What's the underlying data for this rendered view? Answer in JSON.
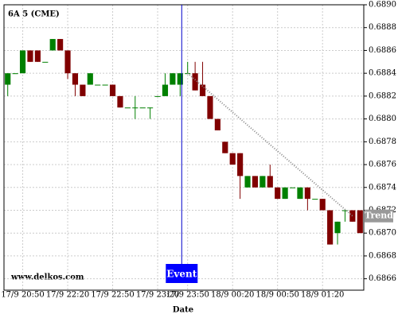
{
  "chart_data": {
    "type": "candlestick",
    "title": "6A 5 (CME)",
    "watermark": "www.delkos.com",
    "x_label": "Date",
    "categories": [
      null,
      null,
      "17/9 20:50",
      null,
      null,
      null,
      null,
      null,
      "17/9 22:20",
      null,
      null,
      null,
      null,
      null,
      "17/9 22:50",
      null,
      null,
      null,
      null,
      null,
      "17/9 23:20",
      null,
      null,
      null,
      "17/9 23:50",
      null,
      null,
      null,
      null,
      null,
      "18/9 00:20",
      null,
      null,
      null,
      null,
      null,
      "18/9 00:50",
      null,
      null,
      null,
      null,
      null,
      "18/9 01:20",
      null,
      null,
      null,
      null,
      null
    ],
    "open": [
      0.6883,
      0.6884,
      0.6884,
      0.6886,
      0.6886,
      0.6885,
      0.6886,
      0.6887,
      0.6886,
      0.6884,
      0.6883,
      0.6883,
      0.6883,
      0.6883,
      0.6883,
      0.6882,
      0.6881,
      0.6881,
      0.6881,
      0.6881,
      0.6882,
      0.6882,
      0.6883,
      0.6883,
      0.6884,
      0.6884,
      0.6883,
      0.6882,
      0.688,
      0.6878,
      0.6877,
      0.6877,
      0.6874,
      0.6875,
      0.6874,
      0.6875,
      0.6874,
      0.6873,
      0.6874,
      0.6873,
      0.6874,
      0.6873,
      0.6873,
      0.6872,
      0.687,
      0.6872,
      0.6872,
      0.6872
    ],
    "high": [
      0.6884,
      0.6884,
      0.6886,
      0.6886,
      0.6886,
      0.6885,
      0.6887,
      0.6887,
      0.6886,
      0.6884,
      0.6883,
      0.6884,
      0.6883,
      0.6883,
      0.6883,
      0.6882,
      0.6881,
      0.6882,
      0.6881,
      0.6881,
      0.6882,
      0.6884,
      0.6884,
      0.6884,
      0.6885,
      0.6885,
      0.6885,
      0.6882,
      0.688,
      0.6878,
      0.6877,
      0.6877,
      0.6875,
      0.6875,
      0.6875,
      0.6876,
      0.6874,
      0.6874,
      0.6874,
      0.6874,
      0.6874,
      0.6873,
      0.6873,
      0.6872,
      0.6871,
      0.6872,
      0.6872,
      0.6872
    ],
    "low": [
      0.6882,
      0.6884,
      0.6884,
      0.6885,
      0.6885,
      0.6885,
      0.6886,
      0.6886,
      0.68835,
      0.6882,
      0.6882,
      0.6883,
      0.6883,
      0.6883,
      0.6882,
      0.6881,
      0.6881,
      0.688,
      0.6881,
      0.688,
      0.6882,
      0.6882,
      0.6883,
      0.6882,
      0.6884,
      0.68825,
      0.6882,
      0.688,
      0.6879,
      0.6877,
      0.6876,
      0.6873,
      0.6874,
      0.6874,
      0.6874,
      0.6874,
      0.6873,
      0.6873,
      0.6874,
      0.6873,
      0.6872,
      0.6873,
      0.6872,
      0.6869,
      0.6869,
      0.6871,
      0.6871,
      0.687
    ],
    "close": [
      0.6884,
      0.6884,
      0.6886,
      0.6885,
      0.6885,
      0.6885,
      0.6887,
      0.6886,
      0.6884,
      0.6883,
      0.6882,
      0.6884,
      0.6883,
      0.6883,
      0.6882,
      0.6881,
      0.6881,
      0.6881,
      0.6881,
      0.6881,
      0.6882,
      0.6883,
      0.6884,
      0.6884,
      0.6884,
      0.68825,
      0.6882,
      0.688,
      0.6879,
      0.6877,
      0.6876,
      0.6875,
      0.6875,
      0.6874,
      0.6875,
      0.6874,
      0.6873,
      0.6874,
      0.6874,
      0.6874,
      0.6873,
      0.6873,
      0.6872,
      0.6869,
      0.6871,
      0.6872,
      0.6871,
      0.687
    ],
    "up_color": "#008000",
    "down_color": "#800000",
    "ylim": [
      0.6865,
      0.689
    ],
    "yticks": [
      0.6866,
      0.6868,
      {
        "value": 0.687,
        "label": "0.6870"
      },
      0.6872,
      0.6874,
      0.6876,
      0.6878,
      {
        "value": 0.688,
        "label": "0.6880"
      },
      0.6882,
      0.6884,
      0.6886,
      0.6888,
      {
        "value": 0.689,
        "label": "0.6890"
      }
    ],
    "grid": true,
    "event": {
      "label": "Event"
    },
    "trend": {
      "label": "Trend",
      "start": 0.6884,
      "end": 0.68715
    }
  }
}
